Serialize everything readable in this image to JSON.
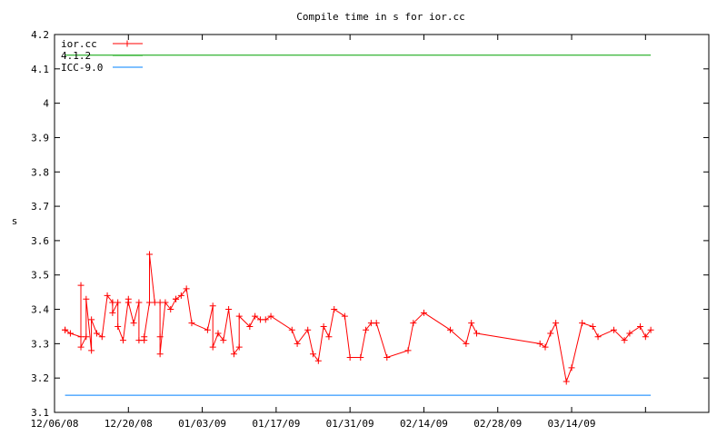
{
  "chart_data": {
    "type": "line",
    "title": "Compile time in s for ior.cc",
    "xlabel": "",
    "ylabel": "s",
    "ylim": [
      3.1,
      4.2
    ],
    "xlim": [
      "2008-12-06",
      "2009-04-09"
    ],
    "grid": false,
    "legend_position": "top-left",
    "y_ticks": [
      "3.1",
      "3.2",
      "3.3",
      "3.4",
      "3.5",
      "3.6",
      "3.7",
      "3.8",
      "3.9",
      "4",
      "4.1",
      "4.2"
    ],
    "x_ticks": [
      "12/06/08",
      "12/20/08",
      "01/03/09",
      "01/17/09",
      "01/31/09",
      "02/14/09",
      "02/28/09",
      "03/14/09"
    ],
    "series": [
      {
        "name": "ior.cc",
        "color": "#ff0000",
        "marker": "plus",
        "points": [
          [
            "2008-12-08",
            3.34
          ],
          [
            "2008-12-08",
            3.34
          ],
          [
            "2008-12-09",
            3.33
          ],
          [
            "2008-12-11",
            3.32
          ],
          [
            "2008-12-11",
            3.47
          ],
          [
            "2008-12-11",
            3.29
          ],
          [
            "2008-12-12",
            3.32
          ],
          [
            "2008-12-12",
            3.43
          ],
          [
            "2008-12-13",
            3.28
          ],
          [
            "2008-12-13",
            3.37
          ],
          [
            "2008-12-14",
            3.33
          ],
          [
            "2008-12-15",
            3.32
          ],
          [
            "2008-12-16",
            3.44
          ],
          [
            "2008-12-17",
            3.42
          ],
          [
            "2008-12-17",
            3.42
          ],
          [
            "2008-12-17",
            3.39
          ],
          [
            "2008-12-18",
            3.42
          ],
          [
            "2008-12-18",
            3.35
          ],
          [
            "2008-12-19",
            3.31
          ],
          [
            "2008-12-20",
            3.43
          ],
          [
            "2008-12-20",
            3.42
          ],
          [
            "2008-12-21",
            3.36
          ],
          [
            "2008-12-22",
            3.42
          ],
          [
            "2008-12-22",
            3.31
          ],
          [
            "2008-12-23",
            3.31
          ],
          [
            "2008-12-23",
            3.32
          ],
          [
            "2008-12-24",
            3.42
          ],
          [
            "2008-12-24",
            3.56
          ],
          [
            "2008-12-25",
            3.42
          ],
          [
            "2008-12-26",
            3.42
          ],
          [
            "2008-12-26",
            3.32
          ],
          [
            "2008-12-26",
            3.27
          ],
          [
            "2008-12-27",
            3.42
          ],
          [
            "2008-12-28",
            3.4
          ],
          [
            "2008-12-29",
            3.43
          ],
          [
            "2008-12-29",
            3.43
          ],
          [
            "2008-12-30",
            3.44
          ],
          [
            "2008-12-31",
            3.46
          ],
          [
            "2009-01-01",
            3.36
          ],
          [
            "2009-01-04",
            3.34
          ],
          [
            "2009-01-05",
            3.41
          ],
          [
            "2009-01-05",
            3.29
          ],
          [
            "2009-01-06",
            3.33
          ],
          [
            "2009-01-07",
            3.31
          ],
          [
            "2009-01-08",
            3.4
          ],
          [
            "2009-01-09",
            3.27
          ],
          [
            "2009-01-10",
            3.29
          ],
          [
            "2009-01-10",
            3.38
          ],
          [
            "2009-01-12",
            3.35
          ],
          [
            "2009-01-13",
            3.38
          ],
          [
            "2009-01-14",
            3.37
          ],
          [
            "2009-01-15",
            3.37
          ],
          [
            "2009-01-16",
            3.38
          ],
          [
            "2009-01-20",
            3.34
          ],
          [
            "2009-01-21",
            3.3
          ],
          [
            "2009-01-23",
            3.34
          ],
          [
            "2009-01-24",
            3.27
          ],
          [
            "2009-01-25",
            3.25
          ],
          [
            "2009-01-26",
            3.35
          ],
          [
            "2009-01-27",
            3.32
          ],
          [
            "2009-01-28",
            3.4
          ],
          [
            "2009-01-30",
            3.38
          ],
          [
            "2009-01-31",
            3.26
          ],
          [
            "2009-02-02",
            3.26
          ],
          [
            "2009-02-03",
            3.34
          ],
          [
            "2009-02-04",
            3.36
          ],
          [
            "2009-02-05",
            3.36
          ],
          [
            "2009-02-07",
            3.26
          ],
          [
            "2009-02-11",
            3.28
          ],
          [
            "2009-02-12",
            3.36
          ],
          [
            "2009-02-14",
            3.39
          ],
          [
            "2009-02-19",
            3.34
          ],
          [
            "2009-02-22",
            3.3
          ],
          [
            "2009-02-23",
            3.36
          ],
          [
            "2009-02-24",
            3.33
          ],
          [
            "2009-03-08",
            3.3
          ],
          [
            "2009-03-09",
            3.29
          ],
          [
            "2009-03-10",
            3.33
          ],
          [
            "2009-03-11",
            3.36
          ],
          [
            "2009-03-13",
            3.19
          ],
          [
            "2009-03-14",
            3.23
          ],
          [
            "2009-03-16",
            3.36
          ],
          [
            "2009-03-18",
            3.35
          ],
          [
            "2009-03-19",
            3.32
          ],
          [
            "2009-03-22",
            3.34
          ],
          [
            "2009-03-24",
            3.31
          ],
          [
            "2009-03-25",
            3.33
          ],
          [
            "2009-03-27",
            3.35
          ],
          [
            "2009-03-28",
            3.32
          ],
          [
            "2009-03-29",
            3.34
          ]
        ]
      },
      {
        "name": "4.1.2",
        "color": "#00a000",
        "marker": "none",
        "points": [
          [
            "2008-12-08",
            4.14
          ],
          [
            "2009-03-29",
            4.14
          ]
        ]
      },
      {
        "name": "ICC-9.0",
        "color": "#0080ff",
        "marker": "none",
        "points": [
          [
            "2008-12-08",
            3.15
          ],
          [
            "2009-03-29",
            3.15
          ]
        ]
      }
    ]
  }
}
